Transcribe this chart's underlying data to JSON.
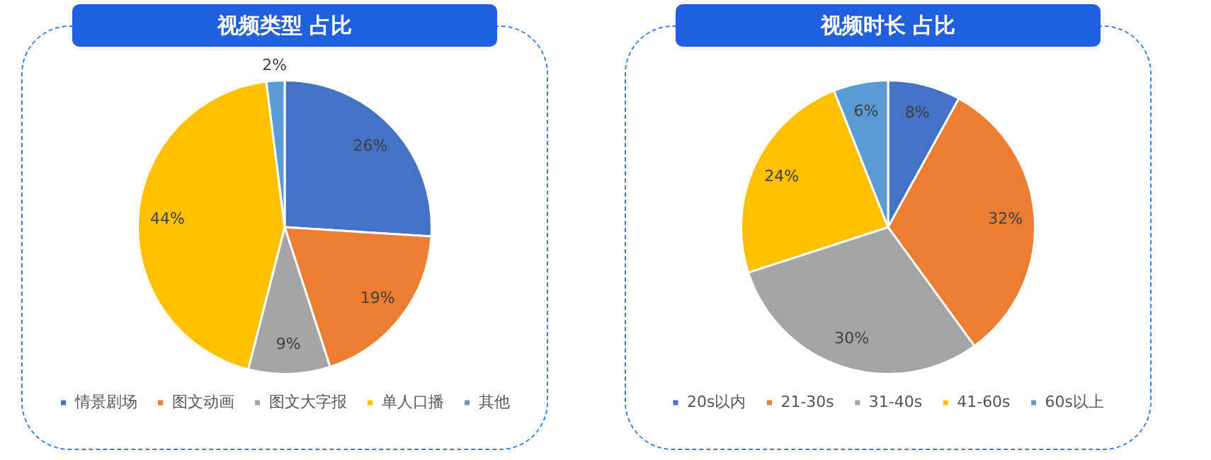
{
  "chart_data": [
    {
      "type": "pie",
      "title": "视频类型 占比",
      "categories": [
        "情景剧场",
        "图文动画",
        "图文大字报",
        "单人口播",
        "其他"
      ],
      "values": [
        26,
        19,
        9,
        44,
        2
      ],
      "value_labels": [
        "26%",
        "19%",
        "9%",
        "44%",
        "2%"
      ],
      "colors": [
        "#4472c4",
        "#ed7d31",
        "#a5a5a5",
        "#ffc000",
        "#5b9bd5"
      ],
      "legend": "bottom"
    },
    {
      "type": "pie",
      "title": "视频时长 占比",
      "categories": [
        "20s以内",
        "21-30s",
        "31-40s",
        "41-60s",
        "60s以上"
      ],
      "values": [
        8,
        32,
        30,
        24,
        6
      ],
      "value_labels": [
        "8%",
        "32%",
        "30%",
        "24%",
        "6%"
      ],
      "colors": [
        "#4472c4",
        "#ed7d31",
        "#a5a5a5",
        "#ffc000",
        "#5b9bd5"
      ],
      "legend": "bottom"
    }
  ]
}
